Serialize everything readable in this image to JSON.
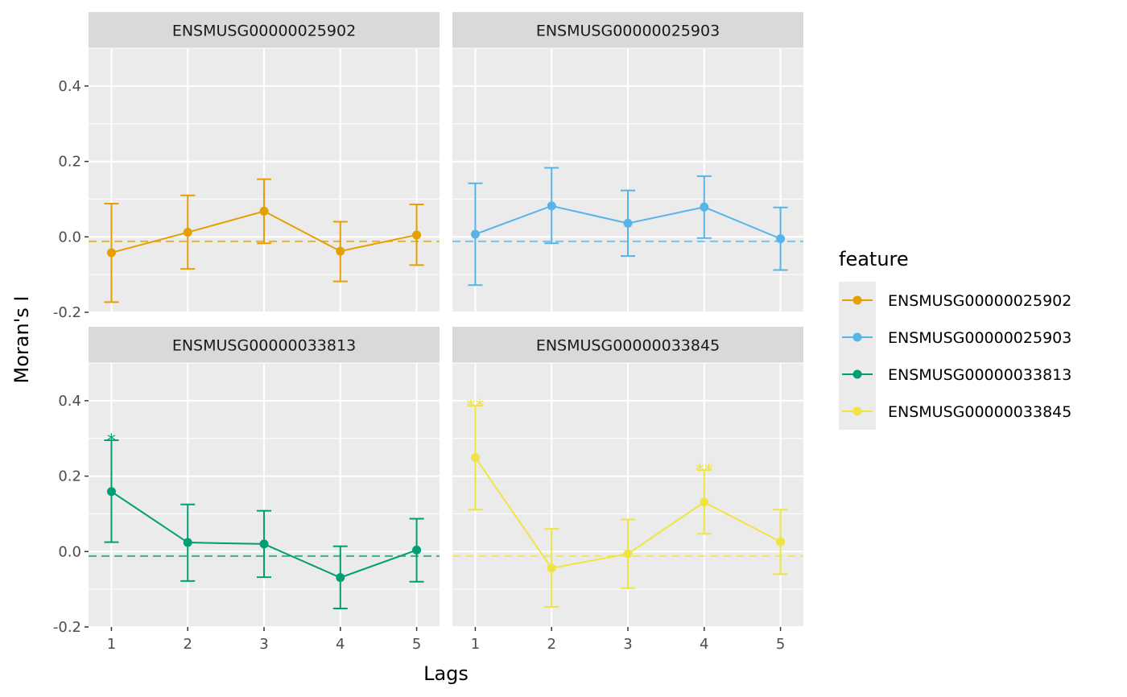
{
  "chart_data": {
    "type": "line",
    "xlabel": "Lags",
    "ylabel": "Moran's I",
    "x": [
      1,
      2,
      3,
      4,
      5
    ],
    "xlim": [
      0.7,
      5.3
    ],
    "ylim": [
      -0.2,
      0.5
    ],
    "yticks": [
      -0.2,
      0.0,
      0.2,
      0.4
    ],
    "ytick_labels": [
      "-0.2",
      "0.0",
      "0.2",
      "0.4"
    ],
    "expected_value": -0.012,
    "legend": {
      "title": "feature",
      "placement": "right"
    },
    "grid": true,
    "panels": [
      {
        "name": "ENSMUSG00000025902",
        "color": "#E69F00",
        "values": [
          -0.042,
          0.012,
          0.068,
          -0.038,
          0.005
        ],
        "lower": [
          -0.173,
          -0.085,
          -0.017,
          -0.118,
          -0.075
        ],
        "upper": [
          0.088,
          0.11,
          0.153,
          0.04,
          0.086
        ],
        "labels": [
          "",
          "",
          "",
          "",
          ""
        ]
      },
      {
        "name": "ENSMUSG00000025903",
        "color": "#56B4E9",
        "values": [
          0.007,
          0.082,
          0.036,
          0.079,
          -0.005
        ],
        "lower": [
          -0.128,
          -0.017,
          -0.051,
          -0.003,
          -0.088
        ],
        "upper": [
          0.142,
          0.183,
          0.123,
          0.161,
          0.078
        ],
        "labels": [
          "",
          "",
          "",
          "",
          ""
        ]
      },
      {
        "name": "ENSMUSG00000033813",
        "color": "#009E73",
        "values": [
          0.159,
          0.024,
          0.02,
          -0.069,
          0.004
        ],
        "lower": [
          0.025,
          -0.078,
          -0.068,
          -0.151,
          -0.08
        ],
        "upper": [
          0.295,
          0.125,
          0.108,
          0.014,
          0.087
        ],
        "labels": [
          "*",
          "",
          "",
          "",
          ""
        ]
      },
      {
        "name": "ENSMUSG00000033845",
        "color": "#F0E442",
        "values": [
          0.249,
          -0.044,
          -0.006,
          0.131,
          0.026
        ],
        "lower": [
          0.111,
          -0.147,
          -0.097,
          0.047,
          -0.06
        ],
        "upper": [
          0.387,
          0.06,
          0.085,
          0.216,
          0.111
        ],
        "labels": [
          "**",
          "",
          "",
          "**",
          ""
        ]
      }
    ]
  }
}
